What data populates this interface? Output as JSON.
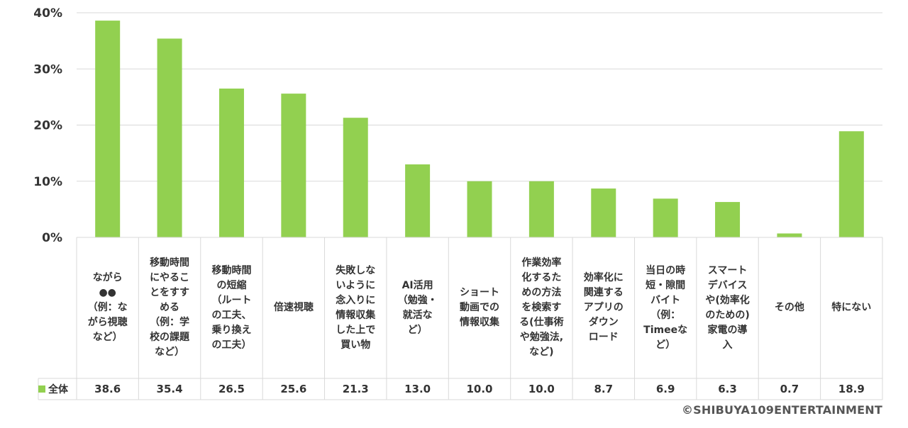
{
  "chart_data": {
    "type": "bar",
    "categories": [
      "ながら\n●●\n（例：な\nがら視聴\nなど）",
      "移動時間\nにやるこ\nとをすす\nめる\n（例：学\n校の課題\nなど）",
      "移動時間\nの短縮\n（ルート\nの工夫、\n乗り換え\nの工夫）",
      "倍速視聴",
      "失敗しな\nいように\n念入りに\n情報収集\nした上で\n買い物",
      "AI活用\n（勉強・\n就活な\nど）",
      "ショート\n動画での\n情報収集",
      "作業効率\n化するた\nめの方法\nを検索す\nる(仕事術\nや勉強法,\nなど)",
      "効率化に\n関連する\nアプリの\nダウン\nロード",
      "当日の時\n短・隙間\nバイト\n（例：\nTimeeな\nど）",
      "スマート\nデバイス\nや(効率化\nのための)\n家電の導\n入",
      "その他",
      "特にない"
    ],
    "series": [
      {
        "name": "全体",
        "values": [
          38.6,
          35.4,
          26.5,
          25.6,
          21.3,
          13.0,
          10.0,
          10.0,
          8.7,
          6.9,
          6.3,
          0.7,
          18.9
        ],
        "labels": [
          "38.6",
          "35.4",
          "26.5",
          "25.6",
          "21.3",
          "13.0",
          "10.0",
          "10.0",
          "8.7",
          "6.9",
          "6.3",
          "0.7",
          "18.9"
        ]
      }
    ],
    "yticks": [
      "0%",
      "10%",
      "20%",
      "30%",
      "40%"
    ],
    "ylim": [
      0,
      40
    ],
    "grid": true,
    "bar_color": "#92d050",
    "legend": "data-table"
  },
  "copyright": "©SHIBUYA109ENTERTAINMENT"
}
